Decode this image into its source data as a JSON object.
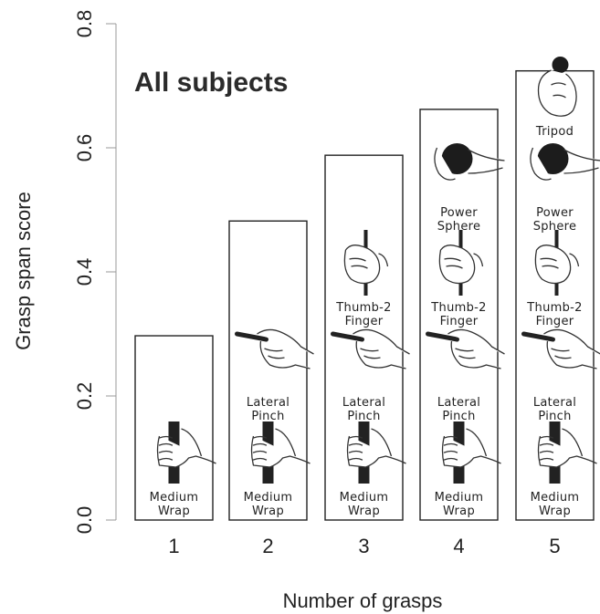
{
  "chart_data": {
    "type": "bar",
    "title": "All subjects",
    "xlabel": "Number of grasps",
    "ylabel": "Grasp span score",
    "ylim": [
      0,
      0.8
    ],
    "yticks": [
      "0.0",
      "0.2",
      "0.4",
      "0.6",
      "0.8"
    ],
    "categories": [
      "1",
      "2",
      "3",
      "4",
      "5"
    ],
    "values": [
      0.297,
      0.482,
      0.588,
      0.662,
      0.724
    ],
    "grid": false,
    "legend": "none",
    "bar_fill": "#ffffff",
    "bar_stroke": "#222222",
    "grasp_stacks": [
      [
        {
          "lines": [
            "Medium",
            "Wrap"
          ],
          "icon": "medium-wrap-icon"
        }
      ],
      [
        {
          "lines": [
            "Medium",
            "Wrap"
          ],
          "icon": "medium-wrap-icon"
        },
        {
          "lines": [
            "Lateral",
            "Pinch"
          ],
          "icon": "lateral-pinch-icon"
        }
      ],
      [
        {
          "lines": [
            "Medium",
            "Wrap"
          ],
          "icon": "medium-wrap-icon"
        },
        {
          "lines": [
            "Lateral",
            "Pinch"
          ],
          "icon": "lateral-pinch-icon"
        },
        {
          "lines": [
            "Thumb-2",
            "Finger"
          ],
          "icon": "thumb-2-finger-icon"
        }
      ],
      [
        {
          "lines": [
            "Medium",
            "Wrap"
          ],
          "icon": "medium-wrap-icon"
        },
        {
          "lines": [
            "Lateral",
            "Pinch"
          ],
          "icon": "lateral-pinch-icon"
        },
        {
          "lines": [
            "Thumb-2",
            "Finger"
          ],
          "icon": "thumb-2-finger-icon"
        },
        {
          "lines": [
            "Power",
            "Sphere"
          ],
          "icon": "power-sphere-icon"
        }
      ],
      [
        {
          "lines": [
            "Medium",
            "Wrap"
          ],
          "icon": "medium-wrap-icon"
        },
        {
          "lines": [
            "Lateral",
            "Pinch"
          ],
          "icon": "lateral-pinch-icon"
        },
        {
          "lines": [
            "Thumb-2",
            "Finger"
          ],
          "icon": "thumb-2-finger-icon"
        },
        {
          "lines": [
            "Power",
            "Sphere"
          ],
          "icon": "power-sphere-icon"
        },
        {
          "lines": [
            "Tripod"
          ],
          "icon": "tripod-icon"
        }
      ]
    ]
  }
}
